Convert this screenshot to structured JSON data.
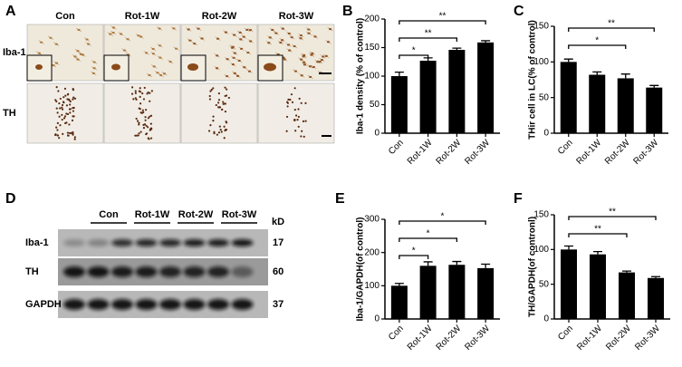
{
  "panel_a": {
    "letter": "A",
    "columns": [
      "Con",
      "Rot-1W",
      "Rot-2W",
      "Rot-3W"
    ],
    "rows": [
      "Iba-1",
      "TH"
    ]
  },
  "panel_d": {
    "letter": "D",
    "groups": [
      "Con",
      "Rot-1W",
      "Rot-2W",
      "Rot-3W"
    ],
    "unit": "kD",
    "rows": [
      {
        "label": "Iba-1",
        "kd": 17
      },
      {
        "label": "TH",
        "kd": 60
      },
      {
        "label": "GAPDH",
        "kd": 37
      }
    ]
  },
  "chart_data": [
    {
      "letter": "B",
      "type": "bar",
      "y_label": "Iba-1 density (% of control)",
      "categories": [
        "Con",
        "Rot-1W",
        "Rot-2W",
        "Rot-3W"
      ],
      "values": [
        100,
        127,
        146,
        159
      ],
      "errors": [
        7,
        5,
        3,
        3
      ],
      "color": "#000000",
      "ylim": [
        0,
        200
      ],
      "yticks": [
        0,
        50,
        100,
        150,
        200
      ],
      "comparisons": [
        {
          "pair": [
            0,
            3
          ],
          "label": "**"
        },
        {
          "pair": [
            0,
            2
          ],
          "label": "**"
        },
        {
          "pair": [
            0,
            1
          ],
          "label": "*"
        }
      ]
    },
    {
      "letter": "C",
      "type": "bar",
      "y_label": "THir cell in LC(% of control)",
      "categories": [
        "Con",
        "Rot-1W",
        "Rot-2W",
        "Rot-3W"
      ],
      "values": [
        100,
        82,
        77,
        64
      ],
      "errors": [
        4,
        4,
        6,
        3
      ],
      "color": "#000000",
      "ylim": [
        0,
        150
      ],
      "yticks": [
        0,
        50,
        100,
        150
      ],
      "comparisons": [
        {
          "pair": [
            0,
            3
          ],
          "label": "**"
        },
        {
          "pair": [
            0,
            2
          ],
          "label": "*"
        }
      ]
    },
    {
      "letter": "E",
      "type": "bar",
      "y_label": "Iba-1/GAPDH(of control)",
      "categories": [
        "Con",
        "Rot-1W",
        "Rot-2W",
        "Rot-3W"
      ],
      "values": [
        100,
        160,
        163,
        153
      ],
      "errors": [
        7,
        12,
        10,
        12
      ],
      "color": "#000000",
      "ylim": [
        0,
        300
      ],
      "yticks": [
        0,
        100,
        200,
        300
      ],
      "comparisons": [
        {
          "pair": [
            0,
            3
          ],
          "label": "*"
        },
        {
          "pair": [
            0,
            2
          ],
          "label": "*"
        },
        {
          "pair": [
            0,
            1
          ],
          "label": "*"
        }
      ]
    },
    {
      "letter": "F",
      "type": "bar",
      "y_label": "TH/GAPDH(of contronl)",
      "categories": [
        "Con",
        "Rot-1W",
        "Rot-2W",
        "Rot-3W"
      ],
      "values": [
        100,
        93,
        67,
        59
      ],
      "errors": [
        5,
        4,
        2,
        2
      ],
      "color": "#000000",
      "ylim": [
        0,
        150
      ],
      "yticks": [
        0,
        50,
        100,
        150
      ],
      "comparisons": [
        {
          "pair": [
            0,
            3
          ],
          "label": "**"
        },
        {
          "pair": [
            0,
            2
          ],
          "label": "**"
        }
      ]
    }
  ]
}
